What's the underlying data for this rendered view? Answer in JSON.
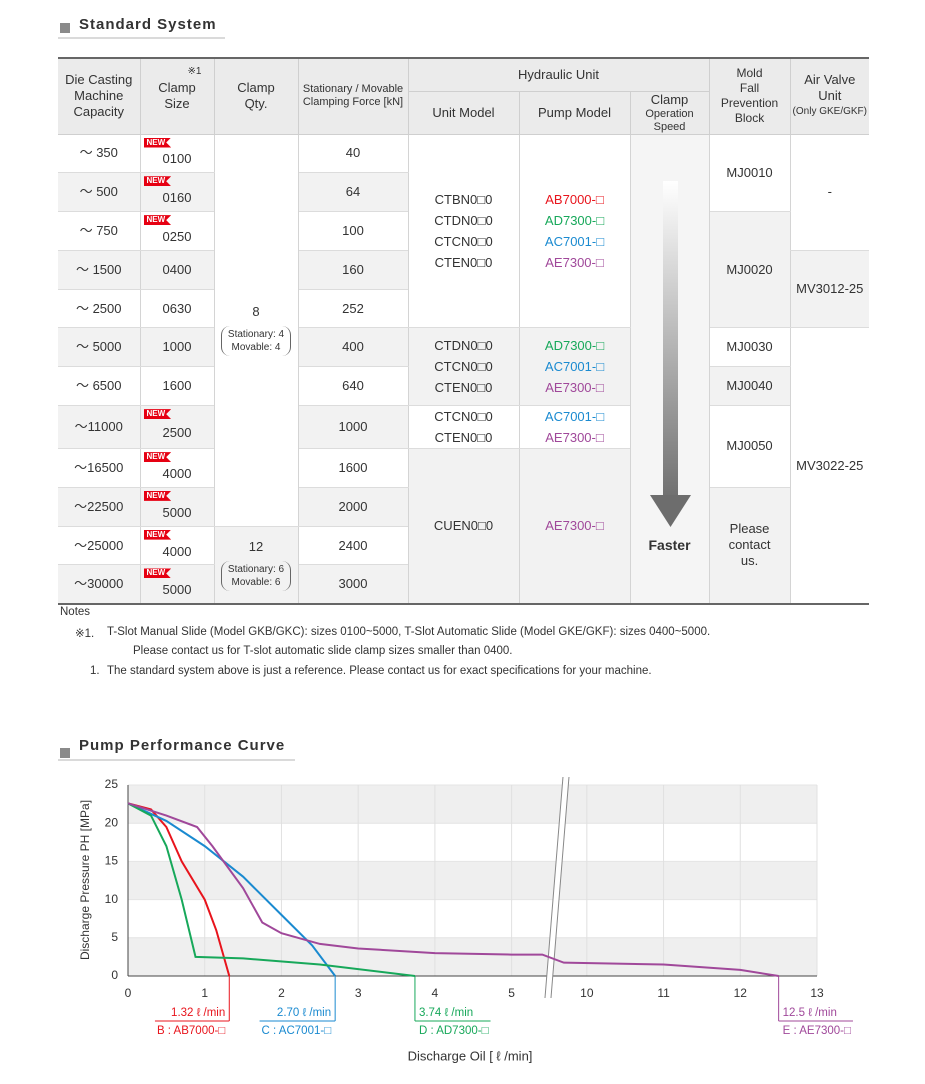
{
  "standard_system": {
    "title": "Standard System",
    "headers": {
      "capacity": "Die Casting\nMachine\nCapacity",
      "clamp_size": "Clamp\nSize",
      "clamp_size_note": "※1",
      "clamp_qty": "Clamp\nQty.",
      "force": "Stationary / Movable\nClamping Force [kN]",
      "hydraulic_unit": "Hydraulic Unit",
      "unit_model": "Unit Model",
      "pump_model": "Pump Model",
      "speed_a": "Clamp",
      "speed_b": "Operation Speed",
      "mold_block": "Mold\nFall Prevention\nBlock",
      "air_valve": "Air Valve\nUnit",
      "air_valve_note": "(Only GKE/GKF)"
    },
    "rows": [
      {
        "capacity": "～ 350",
        "badge": "NEW",
        "size": "0100",
        "force": 40
      },
      {
        "capacity": "～ 500",
        "badge": "NEW",
        "size": "0160",
        "force": 64
      },
      {
        "capacity": "～ 750",
        "badge": "NEW",
        "size": "0250",
        "force": 100
      },
      {
        "capacity": "～ 1500",
        "size": "0400",
        "force": 160
      },
      {
        "capacity": "～ 2500",
        "size": "0630",
        "force": 252
      },
      {
        "capacity": "～ 5000",
        "size": "1000",
        "force": 400
      },
      {
        "capacity": "～ 6500",
        "size": "1600",
        "force": 640
      },
      {
        "capacity": "～11000",
        "badge": "NEW",
        "size": "2500",
        "force": 1000
      },
      {
        "capacity": "～16500",
        "badge": "NEW",
        "size": "4000",
        "force": 1600
      },
      {
        "capacity": "～22500",
        "badge": "NEW",
        "size": "5000",
        "force": 2000
      },
      {
        "capacity": "～25000",
        "badge": "NEW",
        "size": "4000",
        "force": 2400
      },
      {
        "capacity": "～30000",
        "badge": "NEW",
        "size": "5000",
        "force": 3000
      }
    ],
    "clamp_qty": [
      {
        "qty": "8",
        "stationary": "Stationary: 4",
        "movable": "Movable: 4"
      },
      {
        "qty": "12",
        "stationary": "Stationary: 6",
        "movable": "Movable: 6"
      }
    ],
    "unit_groups": [
      {
        "units": [
          "CTBN0□0",
          "CTDN0□0",
          "CTCN0□0",
          "CTEN0□0"
        ],
        "pumps": [
          {
            "name": "AB7000-□",
            "color": "#e8141c"
          },
          {
            "name": "AD7300-□",
            "color": "#17a85a"
          },
          {
            "name": "AC7001-□",
            "color": "#1a8ad0"
          },
          {
            "name": "AE7300-□",
            "color": "#a0489a"
          }
        ]
      },
      {
        "units": [
          "CTDN0□0",
          "CTCN0□0",
          "CTEN0□0"
        ],
        "pumps": [
          {
            "name": "AD7300-□",
            "color": "#17a85a"
          },
          {
            "name": "AC7001-□",
            "color": "#1a8ad0"
          },
          {
            "name": "AE7300-□",
            "color": "#a0489a"
          }
        ]
      },
      {
        "units": [
          "CTCN0□0",
          "CTEN0□0"
        ],
        "pumps": [
          {
            "name": "AC7001-□",
            "color": "#1a8ad0"
          },
          {
            "name": "AE7300-□",
            "color": "#a0489a"
          }
        ]
      },
      {
        "units": [
          "CUEN0□0"
        ],
        "pumps": [
          {
            "name": "AE7300-□",
            "color": "#a0489a"
          }
        ]
      }
    ],
    "speed": "Faster",
    "mold_blocks": [
      "MJ0010",
      "MJ0020",
      "MJ0030",
      "MJ0040",
      "MJ0050",
      "Please\ncontact\nus."
    ],
    "air_valves": [
      "-",
      "MV3012-25",
      "MV3022-25"
    ]
  },
  "notes": {
    "title": "Notes",
    "items": [
      {
        "mark": "※1.",
        "lines": [
          "T-Slot Manual Slide (Model GKB/GKC): sizes 0100~5000, T-Slot Automatic Slide (Model GKE/GKF): sizes 0400~5000.",
          "Please contact us for T-slot automatic slide clamp sizes smaller than 0400."
        ]
      },
      {
        "mark": "1.",
        "lines": [
          "The standard system above is just a reference. Please contact us for exact specifications for your machine."
        ]
      }
    ]
  },
  "chart_data": {
    "type": "line",
    "title": "Pump Performance Curve",
    "xlabel": "Discharge Oil [ ℓ /min]",
    "ylabel": "Discharge Pressure PH [MPa]",
    "xlim": [
      0,
      13
    ],
    "x_break": [
      5.5,
      9.65
    ],
    "ylim": [
      0,
      25
    ],
    "xticks": [
      0,
      1,
      2,
      3,
      4,
      5,
      10,
      11,
      12,
      13
    ],
    "yticks": [
      0,
      5,
      10,
      15,
      20,
      25
    ],
    "grid": "bands",
    "series": [
      {
        "name": "AB7000-□",
        "label": "B : AB7000-□",
        "flow_label": "1.32 ℓ /min",
        "color": "#e8141c",
        "label_align": "end",
        "x": [
          0,
          0.3,
          0.5,
          0.7,
          1.0,
          1.15,
          1.32
        ],
        "values": [
          22.6,
          21.8,
          19.5,
          15,
          10,
          6,
          0
        ]
      },
      {
        "name": "AC7001-□",
        "label": "C : AC7001-□",
        "flow_label": "2.70 ℓ /min",
        "color": "#1a8ad0",
        "label_align": "end",
        "x": [
          0,
          0.5,
          1.0,
          1.5,
          2.0,
          2.4,
          2.7
        ],
        "values": [
          22.6,
          20.3,
          17,
          13,
          8,
          4,
          0
        ]
      },
      {
        "name": "AD7300-□",
        "label": "D : AD7300-□",
        "flow_label": "3.74 ℓ /min",
        "color": "#17a85a",
        "label_align": "start",
        "x": [
          0,
          0.3,
          0.5,
          0.7,
          0.88,
          1.5,
          2.5,
          3.74
        ],
        "values": [
          22.6,
          21,
          17,
          10,
          2.5,
          2.3,
          1.5,
          0
        ]
      },
      {
        "name": "AE7300-□",
        "label": "E : AE7300-□",
        "flow_label": "12.5 ℓ /min",
        "color": "#a0489a",
        "label_align": "start",
        "x": [
          0,
          0.5,
          0.9,
          1.1,
          1.5,
          1.75,
          2.0,
          2.5,
          3,
          4,
          5,
          5.4,
          9.7,
          11,
          12,
          12.5
        ],
        "values": [
          22.6,
          21,
          19.5,
          17,
          11.5,
          7,
          5.6,
          4.2,
          3.6,
          3.0,
          2.8,
          2.8,
          1.75,
          1.5,
          0.8,
          0
        ]
      }
    ]
  }
}
